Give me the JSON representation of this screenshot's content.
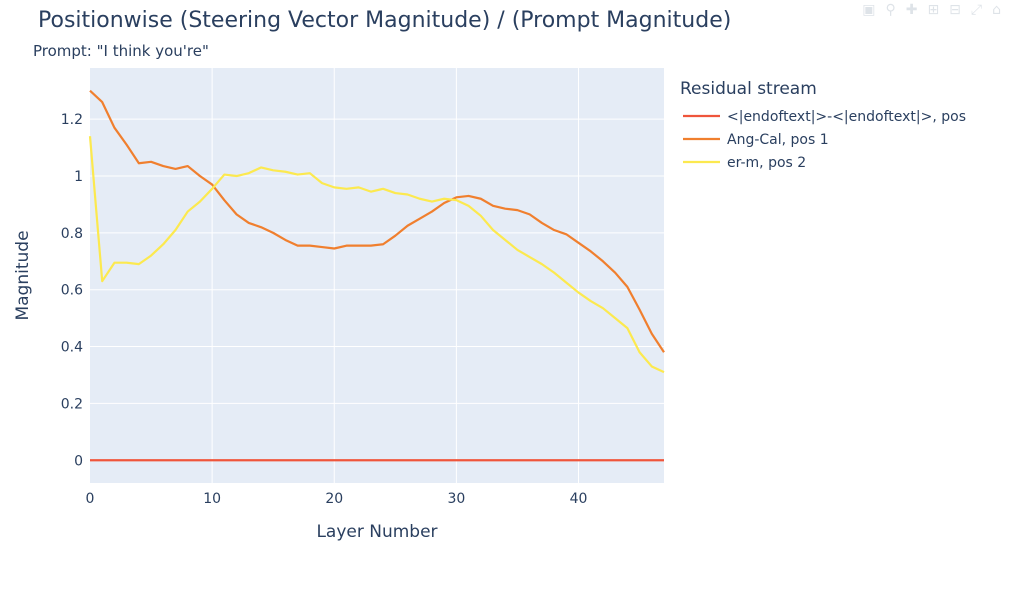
{
  "modebar": {
    "icons": [
      "camera-icon",
      "zoom-icon",
      "pan-icon",
      "zoom-in-icon",
      "zoom-out-icon",
      "autoscale-icon",
      "reset-icon"
    ]
  },
  "colors": {
    "plot_bg": "#e5ecf6",
    "grid": "#ffffff",
    "series": [
      "#ef553b",
      "#f07f2e",
      "#fce94f"
    ]
  },
  "chart_data": {
    "type": "line",
    "title": "Positionwise (Steering Vector Magnitude) / (Prompt Magnitude)",
    "subtitle": "Prompt: \"I think you're\"",
    "xlabel": "Layer Number",
    "ylabel": "Magnitude",
    "xlim": [
      0,
      47
    ],
    "ylim": [
      -0.08,
      1.38
    ],
    "x_ticks": [
      0,
      10,
      20,
      30,
      40
    ],
    "y_ticks": [
      0,
      0.2,
      0.4,
      0.6,
      0.8,
      1,
      1.2
    ],
    "y_tick_labels": [
      "0",
      "0.2",
      "0.4",
      "0.6",
      "0.8",
      "1",
      "1.2"
    ],
    "grid": true,
    "legend_title": "Residual stream",
    "legend_position": "right",
    "x": [
      0,
      1,
      2,
      3,
      4,
      5,
      6,
      7,
      8,
      9,
      10,
      11,
      12,
      13,
      14,
      15,
      16,
      17,
      18,
      19,
      20,
      21,
      22,
      23,
      24,
      25,
      26,
      27,
      28,
      29,
      30,
      31,
      32,
      33,
      34,
      35,
      36,
      37,
      38,
      39,
      40,
      41,
      42,
      43,
      44,
      45,
      46,
      47
    ],
    "series": [
      {
        "name": "<|endoftext|>-<|endoftext|>, pos",
        "color": "#ef553b",
        "values": [
          0,
          0,
          0,
          0,
          0,
          0,
          0,
          0,
          0,
          0,
          0,
          0,
          0,
          0,
          0,
          0,
          0,
          0,
          0,
          0,
          0,
          0,
          0,
          0,
          0,
          0,
          0,
          0,
          0,
          0,
          0,
          0,
          0,
          0,
          0,
          0,
          0,
          0,
          0,
          0,
          0,
          0,
          0,
          0,
          0,
          0,
          0,
          0
        ]
      },
      {
        "name": "Ang-Cal, pos 1",
        "color": "#f07f2e",
        "values": [
          1.3,
          1.26,
          1.17,
          1.11,
          1.045,
          1.05,
          1.035,
          1.025,
          1.035,
          1.0,
          0.97,
          0.915,
          0.865,
          0.835,
          0.82,
          0.8,
          0.775,
          0.755,
          0.755,
          0.75,
          0.745,
          0.755,
          0.755,
          0.755,
          0.76,
          0.79,
          0.825,
          0.85,
          0.875,
          0.905,
          0.925,
          0.93,
          0.92,
          0.895,
          0.885,
          0.88,
          0.865,
          0.835,
          0.81,
          0.795,
          0.765,
          0.735,
          0.7,
          0.66,
          0.61,
          0.53,
          0.445,
          0.38
        ]
      },
      {
        "name": "er-m, pos 2",
        "color": "#fce94f",
        "values": [
          1.14,
          0.63,
          0.695,
          0.695,
          0.69,
          0.72,
          0.76,
          0.81,
          0.875,
          0.91,
          0.955,
          1.005,
          1.0,
          1.01,
          1.03,
          1.02,
          1.015,
          1.005,
          1.01,
          0.975,
          0.96,
          0.955,
          0.96,
          0.945,
          0.955,
          0.94,
          0.935,
          0.92,
          0.91,
          0.92,
          0.915,
          0.895,
          0.86,
          0.81,
          0.775,
          0.74,
          0.715,
          0.69,
          0.66,
          0.625,
          0.59,
          0.56,
          0.535,
          0.5,
          0.465,
          0.38,
          0.33,
          0.31
        ]
      }
    ]
  }
}
